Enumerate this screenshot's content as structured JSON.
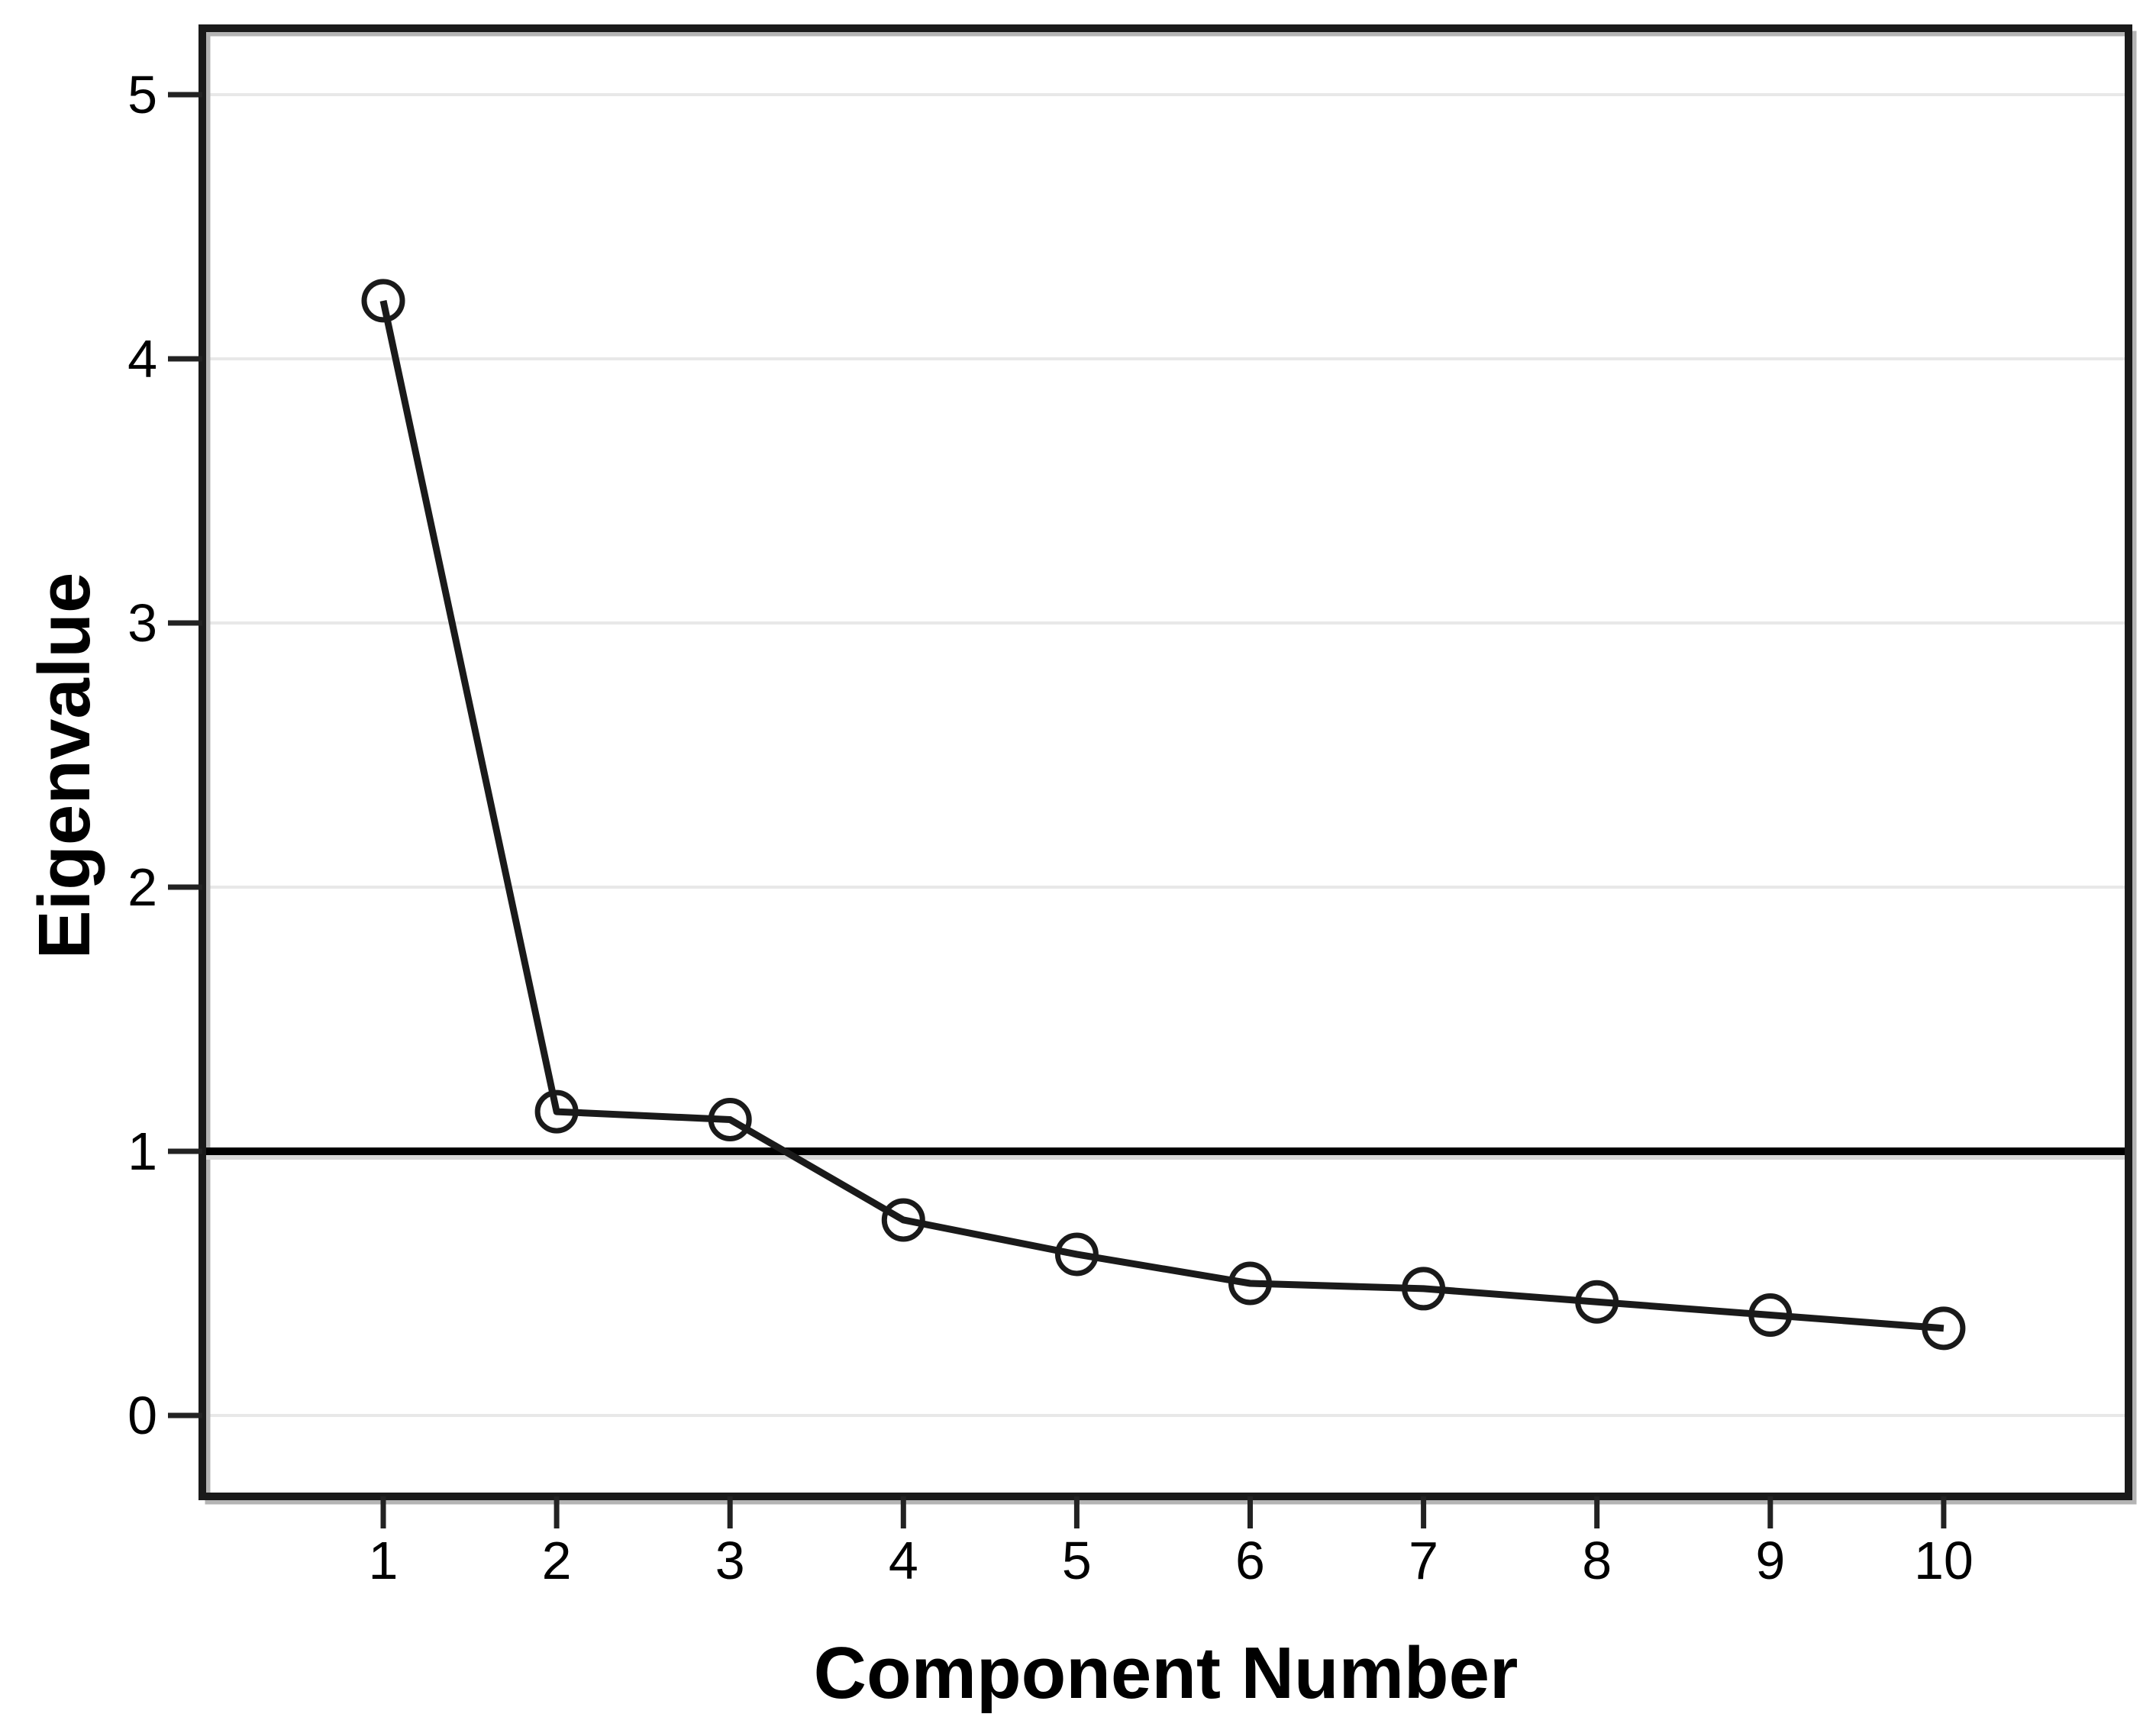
{
  "chart_data": {
    "type": "line",
    "title": "",
    "xlabel": "Component Number",
    "ylabel": "Eigenvalue",
    "x": [
      1,
      2,
      3,
      4,
      5,
      6,
      7,
      8,
      9,
      10
    ],
    "series": [
      {
        "name": "Eigenvalue",
        "values": [
          4.22,
          1.15,
          1.12,
          0.74,
          0.61,
          0.5,
          0.48,
          0.43,
          0.38,
          0.33
        ]
      }
    ],
    "xticks": [
      "1",
      "2",
      "3",
      "4",
      "5",
      "6",
      "7",
      "8",
      "9",
      "10"
    ],
    "yticks": [
      "0",
      "1",
      "2",
      "3",
      "4",
      "5"
    ],
    "ytick_values": [
      0,
      1,
      2,
      3,
      4,
      5
    ],
    "xlim": [
      -0.04,
      11.07
    ],
    "ylim": [
      -0.31,
      5.25
    ],
    "reference_line_y": 1,
    "grid": true,
    "legend": false,
    "marker": "open-circle",
    "colors": {
      "line": "#1a1a1a",
      "marker_stroke": "#1a1a1a",
      "marker_fill": "none",
      "grid": "#e8e8e8",
      "frame": "#1a1a1a",
      "frame_shadow": "#b4b4b4",
      "reference_line": "#000000",
      "reference_shadow": "#d8d8d8",
      "tick": "#222222",
      "text": "#000000",
      "background": "#ffffff"
    }
  }
}
